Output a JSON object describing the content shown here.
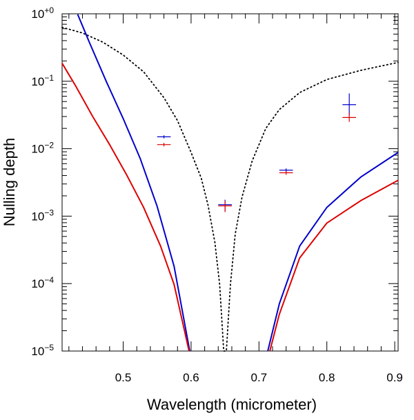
{
  "chart_data": {
    "type": "line",
    "title": "",
    "xlabel": "Wavelength (micrometer)",
    "ylabel": "Nulling depth",
    "xlim": [
      0.41,
      0.905
    ],
    "ylim_log10": [
      -5,
      0
    ],
    "yscale": "log",
    "x_ticks": [
      {
        "value": 0.5,
        "label": "0.5"
      },
      {
        "value": 0.6,
        "label": "0.6"
      },
      {
        "value": 0.7,
        "label": "0.7"
      },
      {
        "value": 0.8,
        "label": "0.8"
      },
      {
        "value": 0.9,
        "label": "0.9"
      }
    ],
    "y_ticks": [
      {
        "exp": 0,
        "base": "10",
        "sup": "+0"
      },
      {
        "exp": -1,
        "base": "10",
        "sup": "−1"
      },
      {
        "exp": -2,
        "base": "10",
        "sup": "−2"
      },
      {
        "exp": -3,
        "base": "10",
        "sup": "−3"
      },
      {
        "exp": -4,
        "base": "10",
        "sup": "−4"
      },
      {
        "exp": -5,
        "base": "10",
        "sup": "−5"
      }
    ],
    "series": [
      {
        "name": "dotted model",
        "color": "#000000",
        "style": "dotted",
        "x": [
          0.41,
          0.44,
          0.47,
          0.5,
          0.53,
          0.56,
          0.58,
          0.6,
          0.615,
          0.625,
          0.635,
          0.642,
          0.646,
          0.648,
          0.652,
          0.654,
          0.658,
          0.665,
          0.675,
          0.69,
          0.71,
          0.73,
          0.76,
          0.8,
          0.85,
          0.905
        ],
        "y": [
          0.63,
          0.52,
          0.38,
          0.245,
          0.138,
          0.057,
          0.026,
          0.0088,
          0.00365,
          0.00145,
          0.00041,
          9.8e-05,
          2.2e-05,
          1e-05,
          1e-05,
          2.2e-05,
          9.8e-05,
          0.00054,
          0.0019,
          0.0066,
          0.02,
          0.038,
          0.068,
          0.106,
          0.145,
          0.19
        ]
      },
      {
        "name": "blue model",
        "color": "#0000cc",
        "style": "solid",
        "x": [
          0.433,
          0.45,
          0.475,
          0.5,
          0.525,
          0.55,
          0.575,
          0.598,
          null,
          0.713,
          0.73,
          0.76,
          0.8,
          0.85,
          0.905
        ],
        "y": [
          0.98,
          0.38,
          0.1,
          0.028,
          0.0072,
          0.0014,
          0.00018,
          1e-05,
          null,
          1e-05,
          5e-05,
          0.00036,
          0.00135,
          0.0038,
          0.0088
        ]
      },
      {
        "name": "red model",
        "color": "#dd0000",
        "style": "solid",
        "x": [
          0.41,
          0.43,
          0.455,
          0.48,
          0.505,
          0.53,
          0.555,
          0.575,
          0.597,
          null,
          0.716,
          0.73,
          0.76,
          0.8,
          0.85,
          0.905
        ],
        "y": [
          0.185,
          0.085,
          0.03,
          0.0115,
          0.0041,
          0.00135,
          0.00036,
          9.7e-05,
          1e-05,
          null,
          1e-05,
          3.5e-05,
          0.00024,
          0.00079,
          0.0017,
          0.0034
        ]
      }
    ],
    "error_points": [
      {
        "series": "blue",
        "color": "#0000cc",
        "x": 0.56,
        "y": 0.015,
        "xerr": 0.01,
        "ylo": 0.0142,
        "yhi": 0.0158
      },
      {
        "series": "red",
        "color": "#dd0000",
        "x": 0.56,
        "y": 0.0115,
        "xerr": 0.01,
        "ylo": 0.0108,
        "yhi": 0.0122
      },
      {
        "series": "blue",
        "color": "#0000cc",
        "x": 0.65,
        "y": 0.00148,
        "xerr": 0.01,
        "ylo": 0.00118,
        "yhi": 0.00175
      },
      {
        "series": "red",
        "color": "#dd0000",
        "x": 0.65,
        "y": 0.00142,
        "xerr": 0.01,
        "ylo": 0.00115,
        "yhi": 0.00168
      },
      {
        "series": "blue",
        "color": "#0000cc",
        "x": 0.74,
        "y": 0.0048,
        "xerr": 0.01,
        "ylo": 0.0045,
        "yhi": 0.0051
      },
      {
        "series": "red",
        "color": "#dd0000",
        "x": 0.74,
        "y": 0.0044,
        "xerr": 0.01,
        "ylo": 0.0041,
        "yhi": 0.0047
      },
      {
        "series": "blue",
        "color": "#0000cc",
        "x": 0.833,
        "y": 0.045,
        "xerr": 0.01,
        "ylo": 0.031,
        "yhi": 0.066
      },
      {
        "series": "red",
        "color": "#dd0000",
        "x": 0.833,
        "y": 0.029,
        "xerr": 0.01,
        "ylo": 0.025,
        "yhi": 0.034
      }
    ]
  }
}
